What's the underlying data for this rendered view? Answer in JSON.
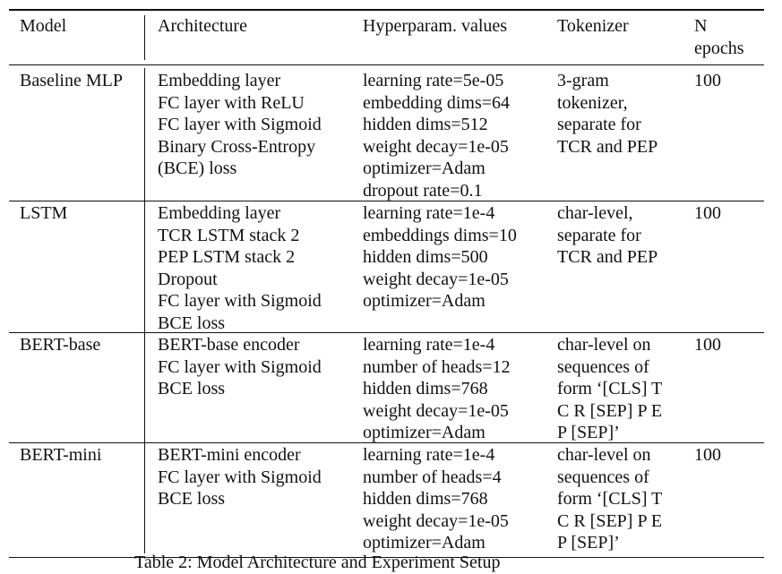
{
  "headers": {
    "model": "Model",
    "architecture": "Architecture",
    "hyperparams": "Hyperparam. values",
    "tokenizer": "Tokenizer",
    "epochs": [
      "N",
      "epochs"
    ]
  },
  "rows": [
    {
      "model": "Baseline MLP",
      "architecture": [
        "Embedding layer",
        "FC layer with ReLU",
        "FC layer with Sigmoid",
        "Binary Cross-Entropy",
        "(BCE) loss"
      ],
      "hyperparams": [
        "learning rate=5e-05",
        "embedding dims=64",
        "hidden dims=512",
        "weight decay=1e-05",
        "optimizer=Adam",
        "dropout rate=0.1"
      ],
      "tokenizer": [
        "3-gram",
        "tokenizer,",
        "separate for",
        "TCR and PEP"
      ],
      "epochs": "100"
    },
    {
      "model": "LSTM",
      "architecture": [
        "Embedding layer",
        "TCR LSTM stack 2",
        "PEP LSTM stack 2",
        "Dropout",
        "FC layer with Sigmoid",
        "BCE loss"
      ],
      "hyperparams": [
        "learning rate=1e-4",
        "embeddings dims=10",
        "hidden dims=500",
        "weight decay=1e-05",
        "optimizer=Adam"
      ],
      "tokenizer": [
        "char-level,",
        "separate for",
        "TCR and PEP"
      ],
      "epochs": "100"
    },
    {
      "model": "BERT-base",
      "architecture": [
        "BERT-base encoder",
        "FC layer with Sigmoid",
        "BCE loss"
      ],
      "hyperparams": [
        "learning rate=1e-4",
        "number of heads=12",
        "hidden dims=768",
        "weight decay=1e-05",
        "optimizer=Adam"
      ],
      "tokenizer": [
        "char-level on",
        "sequences of",
        "form ‘[CLS] T",
        "C R [SEP] P E",
        "P [SEP]’"
      ],
      "epochs": "100"
    },
    {
      "model": "BERT-mini",
      "architecture": [
        "BERT-mini encoder",
        "FC layer with Sigmoid",
        "BCE loss"
      ],
      "hyperparams": [
        "learning rate=1e-4",
        "number of heads=4",
        "hidden dims=768",
        "weight decay=1e-05",
        "optimizer=Adam"
      ],
      "tokenizer": [
        "char-level on",
        "sequences of",
        "form ‘[CLS] T",
        "C R [SEP] P E",
        "P [SEP]’"
      ],
      "epochs": "100"
    }
  ],
  "caption": "Table 2: Model Architecture and Experiment Setup"
}
